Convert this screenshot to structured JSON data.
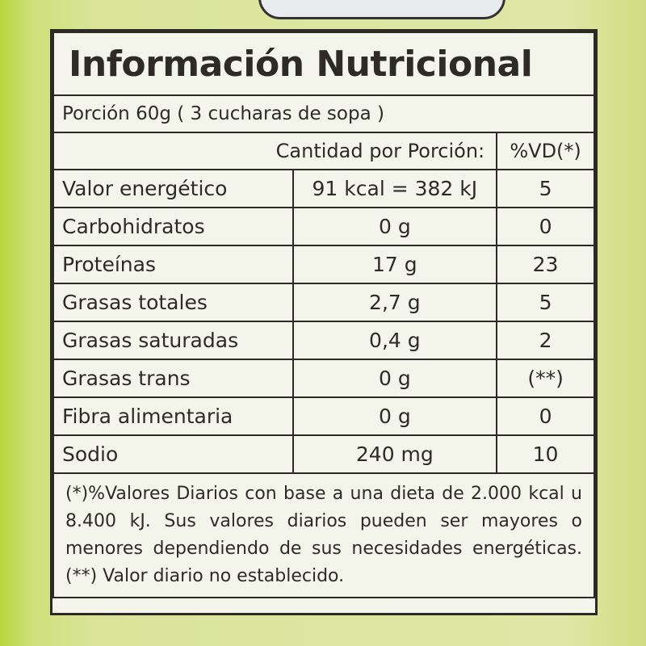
{
  "label": {
    "title": "Información Nutricional",
    "portion": "Porción 60g ( 3 cucharas de sopa )",
    "header": {
      "amount": "Cantidad por Porción:",
      "dv": "%VD(*)"
    },
    "rows": [
      [
        "Valor energético",
        "91 kcal = 382  kJ",
        "5"
      ],
      [
        "Carbohidratos",
        "0 g",
        "0"
      ],
      [
        "Proteínas",
        "17 g",
        "23"
      ],
      [
        "Grasas totales",
        "2,7 g",
        "5"
      ],
      [
        "Grasas saturadas",
        "0,4 g",
        "2"
      ],
      [
        "Grasas trans",
        "0 g",
        "(**)"
      ],
      [
        "Fibra alimentaria",
        "0 g",
        "0"
      ],
      [
        "Sodio",
        "240 mg",
        "10"
      ]
    ],
    "footnote": "(*)%Valores Diarios con base a una dieta de 2.000 kcal u 8.400 kJ. Sus valores diarios pueden ser mayores o menores dependiendo de sus necesidades energéticas. (**) Valor diario no establecido."
  }
}
